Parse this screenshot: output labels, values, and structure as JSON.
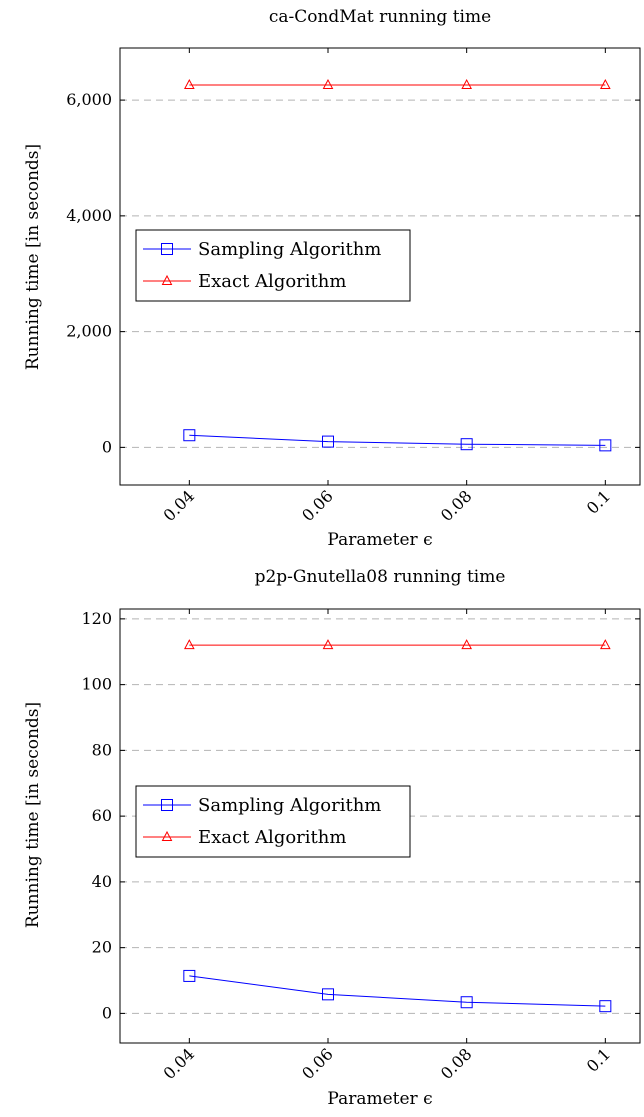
{
  "chart_data": [
    {
      "type": "line",
      "title": "ca-CondMat running time",
      "xlabel": "Parameter ϵ",
      "ylabel": "Running time [in seconds]",
      "x": [
        0.04,
        0.06,
        0.08,
        0.1
      ],
      "x_tick_labels": [
        "0.04",
        "0.06",
        "0.08",
        "0.1"
      ],
      "xlim": [
        0.03,
        0.105
      ],
      "ylim": [
        -650,
        6900
      ],
      "y_ticks": [
        0,
        2000,
        4000,
        6000
      ],
      "y_tick_labels": [
        "0",
        "2,000",
        "4,000",
        "6,000"
      ],
      "grid": "horizontal dashed",
      "legend_position": "center-left",
      "series": [
        {
          "name": "Sampling Algorithm",
          "values": [
            210,
            100,
            55,
            35
          ],
          "color": "#0000ff",
          "marker": "square"
        },
        {
          "name": "Exact Algorithm",
          "values": [
            6260,
            6260,
            6260,
            6260
          ],
          "color": "#ff0000",
          "marker": "triangle"
        }
      ]
    },
    {
      "type": "line",
      "title": "p2p-Gnutella08 running time",
      "xlabel": "Parameter ϵ",
      "ylabel": "Running time [in seconds]",
      "x": [
        0.04,
        0.06,
        0.08,
        0.1
      ],
      "x_tick_labels": [
        "0.04",
        "0.06",
        "0.08",
        "0.1"
      ],
      "xlim": [
        0.03,
        0.105
      ],
      "ylim": [
        -9,
        123
      ],
      "y_ticks": [
        0,
        20,
        40,
        60,
        80,
        100,
        120
      ],
      "y_tick_labels": [
        "0",
        "20",
        "40",
        "60",
        "80",
        "100",
        "120"
      ],
      "grid": "horizontal dashed",
      "legend_position": "center-left",
      "series": [
        {
          "name": "Sampling Algorithm",
          "values": [
            11.4,
            5.8,
            3.4,
            2.2
          ],
          "color": "#0000ff",
          "marker": "square"
        },
        {
          "name": "Exact Algorithm",
          "values": [
            112,
            112,
            112,
            112
          ],
          "color": "#ff0000",
          "marker": "triangle"
        }
      ]
    }
  ]
}
